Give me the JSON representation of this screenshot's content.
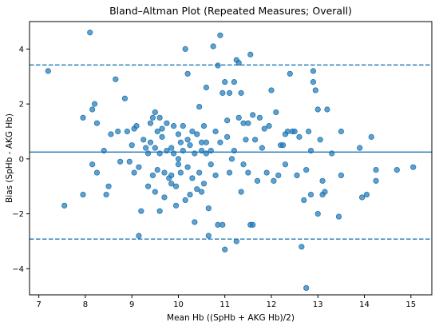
{
  "chart_data": {
    "type": "scatter",
    "title": "Bland–Altman Plot (Repeated Measures; Overall)",
    "xlabel": "Mean Hb ((SpHb + AKG Hb)/2)",
    "ylabel": "Bias (SpHb - AKG Hb)",
    "xlim": [
      6.8,
      15.45
    ],
    "ylim": [
      -4.95,
      5.0
    ],
    "xticks": [
      7,
      8,
      9,
      10,
      11,
      12,
      13,
      14,
      15
    ],
    "yticks": [
      -4,
      -2,
      0,
      2,
      4
    ],
    "grid": false,
    "legend": "none",
    "reference_lines": [
      {
        "id": "mean-bias",
        "y": 0.25,
        "style": "solid"
      },
      {
        "id": "upper-loa",
        "y": 3.42,
        "style": "dashed"
      },
      {
        "id": "lower-loa",
        "y": -2.92,
        "style": "dashed"
      }
    ],
    "marker_color": "#1f77b4",
    "points": [
      [
        7.2,
        3.2
      ],
      [
        7.55,
        -1.7
      ],
      [
        7.95,
        1.5
      ],
      [
        7.95,
        -1.3
      ],
      [
        8.1,
        4.6
      ],
      [
        8.15,
        1.8
      ],
      [
        8.2,
        2.0
      ],
      [
        8.25,
        1.3
      ],
      [
        8.25,
        -0.5
      ],
      [
        8.15,
        -0.2
      ],
      [
        8.4,
        0.3
      ],
      [
        8.45,
        -1.3
      ],
      [
        8.5,
        -1.0
      ],
      [
        8.55,
        0.9
      ],
      [
        8.65,
        2.9
      ],
      [
        8.7,
        1.0
      ],
      [
        8.75,
        -0.1
      ],
      [
        8.85,
        2.2
      ],
      [
        8.9,
        1.0
      ],
      [
        8.95,
        -0.1
      ],
      [
        9.0,
        0.5
      ],
      [
        9.05,
        1.1
      ],
      [
        9.05,
        -0.5
      ],
      [
        9.1,
        1.2
      ],
      [
        9.15,
        -0.3
      ],
      [
        9.15,
        -2.8
      ],
      [
        9.2,
        -1.9
      ],
      [
        9.25,
        0.7
      ],
      [
        9.3,
        0.4
      ],
      [
        9.35,
        0.2
      ],
      [
        9.35,
        -1.0
      ],
      [
        9.4,
        1.3
      ],
      [
        9.4,
        0.6
      ],
      [
        9.45,
        1.5
      ],
      [
        9.45,
        -0.6
      ],
      [
        9.5,
        1.7
      ],
      [
        9.5,
        0.4
      ],
      [
        9.5,
        -1.2
      ],
      [
        9.55,
        1.0
      ],
      [
        9.55,
        -0.4
      ],
      [
        9.6,
        1.5
      ],
      [
        9.6,
        0.2
      ],
      [
        9.6,
        -1.9
      ],
      [
        9.65,
        1.1
      ],
      [
        9.65,
        0.8
      ],
      [
        9.7,
        -0.5
      ],
      [
        9.7,
        -1.4
      ],
      [
        9.75,
        1.3
      ],
      [
        9.75,
        0.3
      ],
      [
        9.8,
        -0.7
      ],
      [
        9.85,
        0.4
      ],
      [
        9.85,
        -0.6
      ],
      [
        9.9,
        1.2
      ],
      [
        9.9,
        0.2
      ],
      [
        9.95,
        -1.0
      ],
      [
        9.95,
        -1.7
      ],
      [
        10.0,
        0.9
      ],
      [
        10.0,
        0.0
      ],
      [
        10.0,
        -0.2
      ],
      [
        10.05,
        0.6
      ],
      [
        10.05,
        -0.5
      ],
      [
        10.1,
        1.2
      ],
      [
        10.1,
        0.3
      ],
      [
        10.15,
        4.0
      ],
      [
        10.15,
        -1.5
      ],
      [
        10.2,
        3.1
      ],
      [
        10.2,
        0.7
      ],
      [
        10.2,
        -0.3
      ],
      [
        10.25,
        0.5
      ],
      [
        10.25,
        -1.3
      ],
      [
        10.3,
        1.0
      ],
      [
        10.3,
        -0.7
      ],
      [
        10.35,
        0.2
      ],
      [
        10.35,
        -2.3
      ],
      [
        10.4,
        0.9
      ],
      [
        10.4,
        -1.1
      ],
      [
        10.45,
        1.9
      ],
      [
        10.45,
        -0.5
      ],
      [
        10.5,
        0.3
      ],
      [
        10.5,
        -1.2
      ],
      [
        10.55,
        1.2
      ],
      [
        10.55,
        -0.9
      ],
      [
        10.6,
        2.6
      ],
      [
        10.6,
        0.6
      ],
      [
        10.65,
        -1.8
      ],
      [
        10.65,
        -2.8
      ],
      [
        10.7,
        0.3
      ],
      [
        10.7,
        -0.2
      ],
      [
        10.75,
        4.1
      ],
      [
        10.8,
        1.0
      ],
      [
        10.8,
        -0.6
      ],
      [
        10.85,
        3.4
      ],
      [
        10.85,
        -2.4
      ],
      [
        10.9,
        4.5
      ],
      [
        10.9,
        0.6
      ],
      [
        10.95,
        2.4
      ],
      [
        10.95,
        -2.4
      ],
      [
        11.0,
        2.8
      ],
      [
        11.0,
        -3.3
      ],
      [
        11.05,
        1.4
      ],
      [
        11.05,
        0.8
      ],
      [
        11.1,
        2.4
      ],
      [
        11.1,
        -0.5
      ],
      [
        11.15,
        0.0
      ],
      [
        11.2,
        2.8
      ],
      [
        11.2,
        0.3
      ],
      [
        11.25,
        3.6
      ],
      [
        11.25,
        -3.0
      ],
      [
        11.3,
        3.5
      ],
      [
        11.3,
        1.5
      ],
      [
        11.35,
        -1.2
      ],
      [
        11.35,
        2.4
      ],
      [
        11.4,
        1.3
      ],
      [
        11.45,
        0.7
      ],
      [
        11.5,
        1.3
      ],
      [
        11.5,
        -0.5
      ],
      [
        11.55,
        3.8
      ],
      [
        11.55,
        -2.4
      ],
      [
        11.6,
        1.6
      ],
      [
        11.65,
        0.7
      ],
      [
        11.7,
        -0.8
      ],
      [
        11.75,
        1.5
      ],
      [
        11.8,
        0.4
      ],
      [
        11.85,
        1.1
      ],
      [
        11.9,
        -0.5
      ],
      [
        11.95,
        1.2
      ],
      [
        12.0,
        2.5
      ],
      [
        12.05,
        -0.8
      ],
      [
        12.1,
        1.7
      ],
      [
        12.15,
        -0.6
      ],
      [
        12.2,
        0.5
      ],
      [
        12.25,
        0.5
      ],
      [
        12.3,
        -0.2
      ],
      [
        12.35,
        1.0
      ],
      [
        12.4,
        3.1
      ],
      [
        12.45,
        1.0
      ],
      [
        12.5,
        1.0
      ],
      [
        12.55,
        -0.6
      ],
      [
        12.6,
        0.8
      ],
      [
        12.65,
        -3.2
      ],
      [
        12.7,
        -1.5
      ],
      [
        12.75,
        -0.4
      ],
      [
        12.75,
        -4.7
      ],
      [
        12.8,
        1.0
      ],
      [
        12.85,
        -1.3
      ],
      [
        12.9,
        3.2
      ],
      [
        12.9,
        2.8
      ],
      [
        12.95,
        2.5
      ],
      [
        13.0,
        1.8
      ],
      [
        13.0,
        -2.0
      ],
      [
        13.05,
        0.7
      ],
      [
        13.1,
        -0.8
      ],
      [
        13.1,
        -1.3
      ],
      [
        13.15,
        -1.2
      ],
      [
        13.2,
        1.8
      ],
      [
        13.3,
        0.2
      ],
      [
        13.45,
        -2.1
      ],
      [
        13.5,
        1.0
      ],
      [
        13.5,
        -0.6
      ],
      [
        13.9,
        0.4
      ],
      [
        13.95,
        -1.4
      ],
      [
        14.05,
        -1.3
      ],
      [
        14.15,
        0.8
      ],
      [
        14.25,
        -0.4
      ],
      [
        14.25,
        -0.8
      ],
      [
        14.7,
        -0.4
      ],
      [
        15.05,
        -0.3
      ],
      [
        12.85,
        0.3
      ],
      [
        11.6,
        -2.4
      ],
      [
        9.85,
        -0.9
      ],
      [
        10.5,
        0.6
      ],
      [
        10.6,
        0.2
      ],
      [
        11.4,
        -0.2
      ],
      [
        12.3,
        0.9
      ]
    ]
  }
}
